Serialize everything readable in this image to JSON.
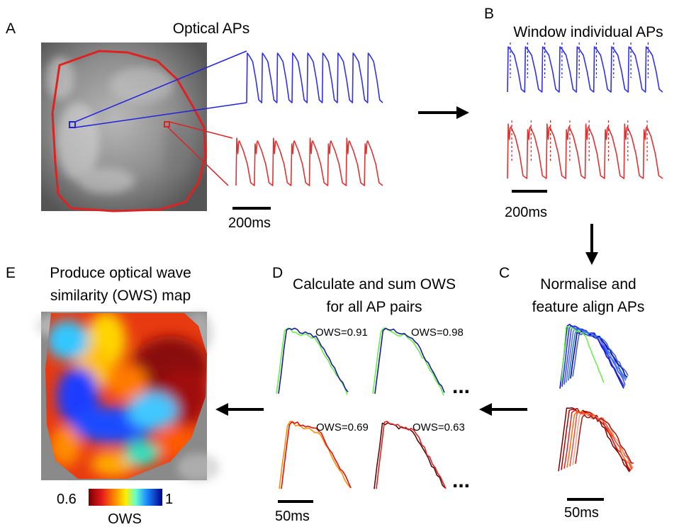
{
  "panels": {
    "a": {
      "letter": "A",
      "title": "Optical APs",
      "scale": "200ms"
    },
    "b": {
      "letter": "B",
      "title": "Window individual APs",
      "scale": "200ms"
    },
    "c": {
      "letter": "C",
      "title_line1": "Normalise and",
      "title_line2": "feature align APs",
      "scale": "50ms"
    },
    "d": {
      "letter": "D",
      "title_line1": "Calculate and sum OWS",
      "title_line2": "for all AP pairs",
      "scale": "50ms",
      "pairs": [
        {
          "label": "OWS=0.91",
          "color": "#2222dd"
        },
        {
          "label": "OWS=0.98",
          "color": "#2222dd"
        },
        {
          "label": "OWS=0.69",
          "color": "#dd2222"
        },
        {
          "label": "OWS=0.63",
          "color": "#dd2222"
        }
      ],
      "ellipsis": "...",
      "ellipsis_blue": "#2222dd",
      "ellipsis_red": "#dd2222"
    },
    "e": {
      "letter": "E",
      "title_line1": "Produce optical wave",
      "title_line2": "similarity (OWS) map",
      "colorbar_min": "0.6",
      "colorbar_max": "1",
      "colorbar_label": "OWS"
    }
  },
  "colors": {
    "blue_trace": "#3030ee",
    "red_trace": "#dd3333",
    "green_trace": "#66ee44",
    "arrow": "#000000"
  }
}
